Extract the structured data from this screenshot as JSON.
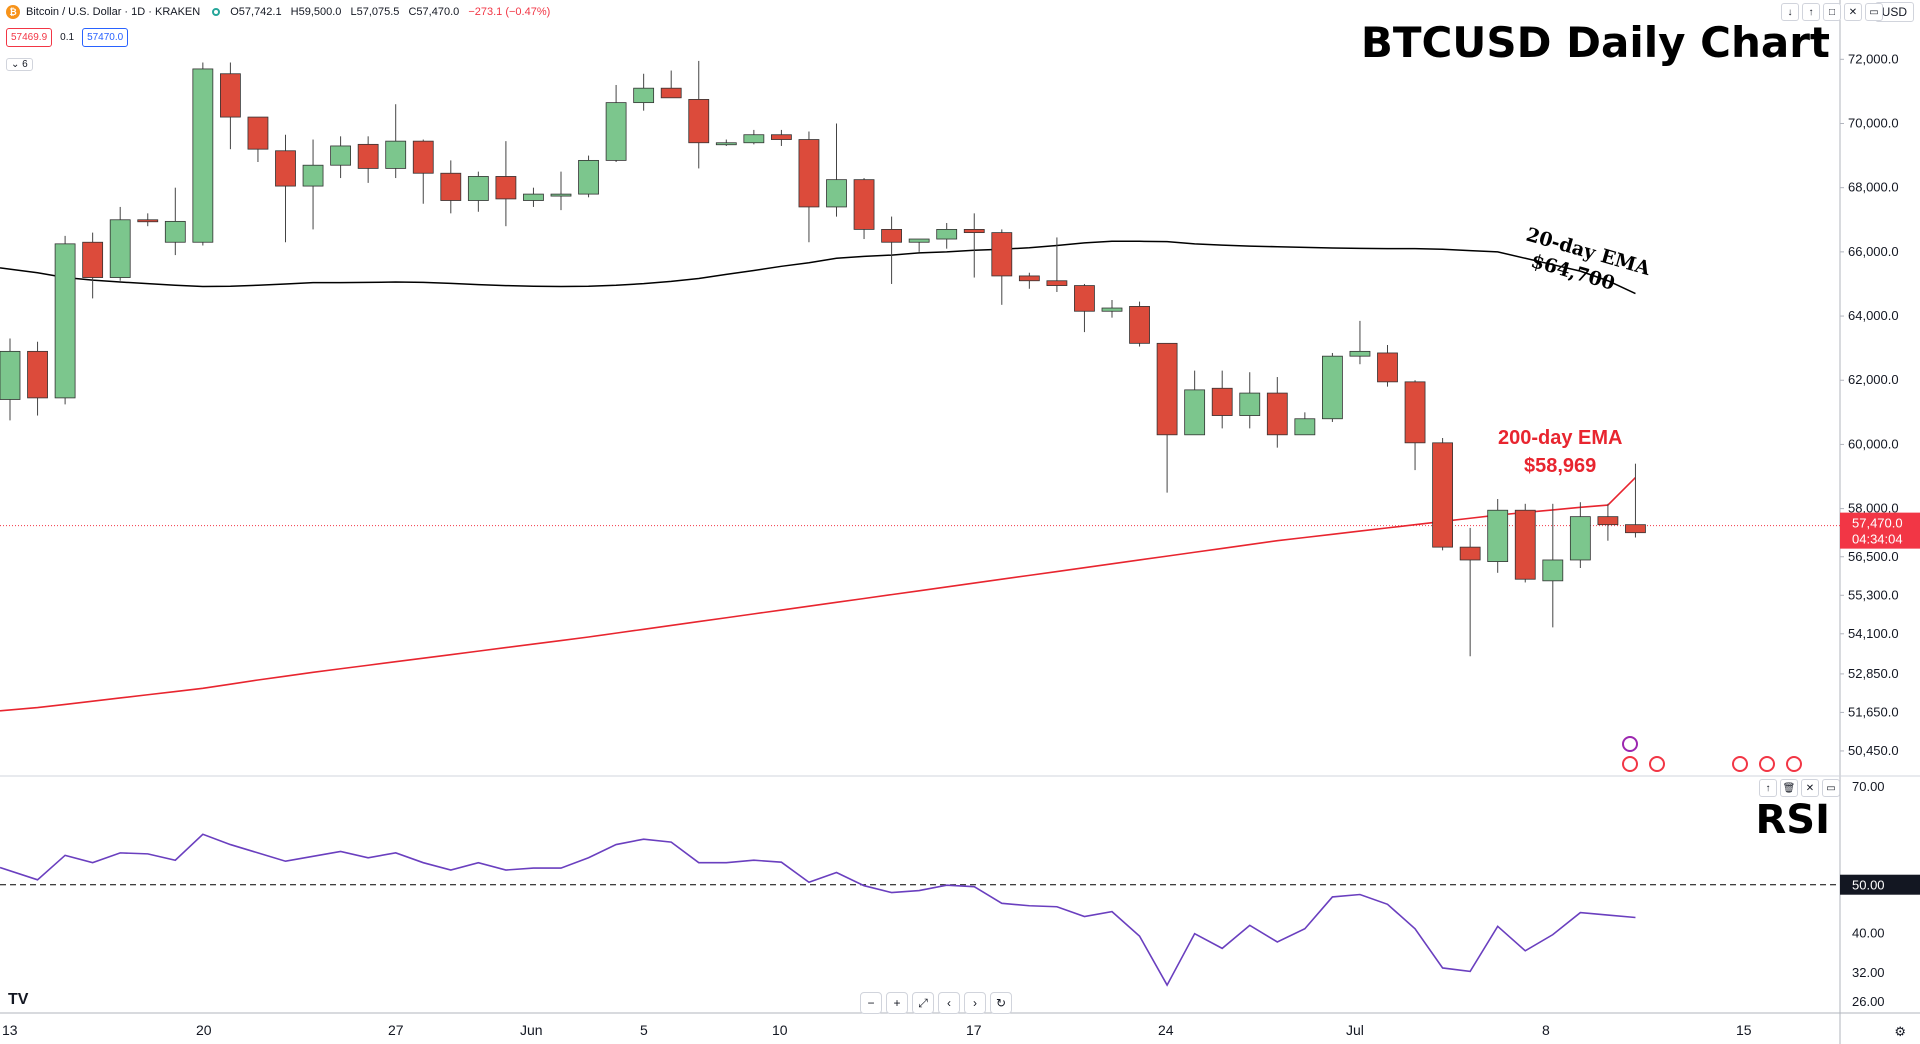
{
  "header": {
    "symbol": "Bitcoin / U.S. Dollar · 1D · KRAKEN",
    "open": "O57,742.1",
    "high": "H59,500.0",
    "low": "L57,075.5",
    "close": "C57,470.0",
    "change": "−273.1 (−0.47%)",
    "sell_price": "57469.9",
    "spread": "0.1",
    "buy_price": "57470.0",
    "indicator_count": "6",
    "currency": "USD"
  },
  "annotations": {
    "chart_title": "BTCUSD Daily Chart",
    "rsi_title": "RSI",
    "ema20_label": "20-day EMA",
    "ema20_value": "$64,700",
    "ema200_label": "200-day EMA",
    "ema200_value": "$58,969"
  },
  "price_badge": {
    "price": "57,470.0",
    "countdown": "04:34:04"
  },
  "rsi_badge": "50.00",
  "controls": {
    "pane_buttons": [
      "↓",
      "↑",
      "□",
      "✕",
      "▭"
    ],
    "rsi_buttons": [
      "↑",
      "🗑",
      "✕",
      "▭"
    ],
    "zoom_buttons": [
      "−",
      "+",
      "⤢",
      "‹",
      "›",
      "↻"
    ],
    "logo": "TV",
    "gear": "⚙"
  },
  "colors": {
    "up": "#7cc68d",
    "down": "#dc4b3b",
    "ema20": "#000000",
    "ema200": "#e8252f",
    "rsi": "#6a3fbf",
    "ema200_text": "#e8252f"
  },
  "chart_data": {
    "type": "candlestick",
    "x_tick_labels": [
      "13",
      "20",
      "27",
      "Jun",
      "5",
      "10",
      "17",
      "24",
      "Jul",
      "8",
      "15"
    ],
    "price_axis_ticks": [
      "72,000.0",
      "70,000.0",
      "68,000.0",
      "66,000.0",
      "64,000.0",
      "62,000.0",
      "60,000.0",
      "58,000.0",
      "56,500.0",
      "55,300.0",
      "54,100.0",
      "52,850.0",
      "51,650.0",
      "50,450.0"
    ],
    "rsi_axis_ticks": [
      "70.00",
      "40.00",
      "32.00",
      "26.00"
    ],
    "candles": [
      {
        "o": 61400,
        "h": 63300,
        "l": 60750,
        "c": 62900
      },
      {
        "o": 62900,
        "h": 63200,
        "l": 60900,
        "c": 61450
      },
      {
        "o": 61450,
        "h": 66500,
        "l": 61250,
        "c": 66250
      },
      {
        "o": 66300,
        "h": 66600,
        "l": 64550,
        "c": 65200
      },
      {
        "o": 65200,
        "h": 67400,
        "l": 65100,
        "c": 67000
      },
      {
        "o": 67000,
        "h": 67200,
        "l": 66800,
        "c": 66950
      },
      {
        "o": 66300,
        "h": 68000,
        "l": 65900,
        "c": 66950
      },
      {
        "o": 66300,
        "h": 71900,
        "l": 66200,
        "c": 71700
      },
      {
        "o": 71550,
        "h": 71900,
        "l": 69200,
        "c": 70200
      },
      {
        "o": 70200,
        "h": 70200,
        "l": 68800,
        "c": 69200
      },
      {
        "o": 69150,
        "h": 69650,
        "l": 66300,
        "c": 68050
      },
      {
        "o": 68050,
        "h": 69500,
        "l": 66700,
        "c": 68700
      },
      {
        "o": 68700,
        "h": 69600,
        "l": 68300,
        "c": 69300
      },
      {
        "o": 69350,
        "h": 69600,
        "l": 68150,
        "c": 68600
      },
      {
        "o": 68600,
        "h": 70600,
        "l": 68300,
        "c": 69450
      },
      {
        "o": 69450,
        "h": 69500,
        "l": 67500,
        "c": 68450
      },
      {
        "o": 68450,
        "h": 68850,
        "l": 67200,
        "c": 67600
      },
      {
        "o": 67600,
        "h": 68500,
        "l": 67250,
        "c": 68350
      },
      {
        "o": 68350,
        "h": 69450,
        "l": 66800,
        "c": 67650
      },
      {
        "o": 67600,
        "h": 68000,
        "l": 67400,
        "c": 67800
      },
      {
        "o": 67800,
        "h": 68500,
        "l": 67300,
        "c": 67800
      },
      {
        "o": 67800,
        "h": 69000,
        "l": 67700,
        "c": 68850
      },
      {
        "o": 68850,
        "h": 71200,
        "l": 68800,
        "c": 70650
      },
      {
        "o": 70650,
        "h": 71550,
        "l": 70400,
        "c": 71100
      },
      {
        "o": 71100,
        "h": 71650,
        "l": 70800,
        "c": 70800
      },
      {
        "o": 70750,
        "h": 71950,
        "l": 68600,
        "c": 69400
      },
      {
        "o": 69400,
        "h": 69500,
        "l": 69300,
        "c": 69400
      },
      {
        "o": 69400,
        "h": 69800,
        "l": 69350,
        "c": 69650
      },
      {
        "o": 69650,
        "h": 69800,
        "l": 69300,
        "c": 69500
      },
      {
        "o": 69500,
        "h": 69750,
        "l": 66300,
        "c": 67400
      },
      {
        "o": 67400,
        "h": 70000,
        "l": 67100,
        "c": 68250
      },
      {
        "o": 68250,
        "h": 68300,
        "l": 66400,
        "c": 66700
      },
      {
        "o": 66700,
        "h": 67100,
        "l": 65000,
        "c": 66300
      },
      {
        "o": 66300,
        "h": 66400,
        "l": 66000,
        "c": 66400
      },
      {
        "o": 66400,
        "h": 66900,
        "l": 66100,
        "c": 66700
      },
      {
        "o": 66700,
        "h": 67200,
        "l": 65200,
        "c": 66600
      },
      {
        "o": 66600,
        "h": 66700,
        "l": 64350,
        "c": 65250
      },
      {
        "o": 65250,
        "h": 65350,
        "l": 64850,
        "c": 65100
      },
      {
        "o": 65100,
        "h": 66450,
        "l": 64750,
        "c": 64950
      },
      {
        "o": 64950,
        "h": 65000,
        "l": 63500,
        "c": 64150
      },
      {
        "o": 64150,
        "h": 64500,
        "l": 63950,
        "c": 64250
      },
      {
        "o": 64300,
        "h": 64450,
        "l": 63050,
        "c": 63150
      },
      {
        "o": 63150,
        "h": 63150,
        "l": 58500,
        "c": 60300
      },
      {
        "o": 60300,
        "h": 62300,
        "l": 60300,
        "c": 61700
      },
      {
        "o": 61750,
        "h": 62300,
        "l": 60500,
        "c": 60900
      },
      {
        "o": 60900,
        "h": 62250,
        "l": 60500,
        "c": 61600
      },
      {
        "o": 61600,
        "h": 62100,
        "l": 59900,
        "c": 60300
      },
      {
        "o": 60300,
        "h": 61000,
        "l": 60300,
        "c": 60800
      },
      {
        "o": 60800,
        "h": 62850,
        "l": 60700,
        "c": 62750
      },
      {
        "o": 62750,
        "h": 63850,
        "l": 62500,
        "c": 62900
      },
      {
        "o": 62850,
        "h": 63100,
        "l": 61800,
        "c": 61950
      },
      {
        "o": 61950,
        "h": 62000,
        "l": 59200,
        "c": 60050
      },
      {
        "o": 60050,
        "h": 60200,
        "l": 56700,
        "c": 56800
      },
      {
        "o": 56800,
        "h": 57400,
        "l": 53400,
        "c": 56400
      },
      {
        "o": 56350,
        "h": 58300,
        "l": 56000,
        "c": 57950
      },
      {
        "o": 57950,
        "h": 58150,
        "l": 55700,
        "c": 55800
      },
      {
        "o": 55750,
        "h": 58150,
        "l": 54300,
        "c": 56400
      },
      {
        "o": 56400,
        "h": 58200,
        "l": 56150,
        "c": 57750
      },
      {
        "o": 57750,
        "h": 58150,
        "l": 57000,
        "c": 57500
      },
      {
        "o": 57500,
        "h": 59400,
        "l": 57100,
        "c": 57250
      }
    ],
    "ema20": [
      65500,
      65350,
      65200,
      65120,
      65060,
      65010,
      64960,
      64920,
      64930,
      64960,
      65000,
      65040,
      65040,
      65050,
      65060,
      65050,
      65020,
      64980,
      64950,
      64930,
      64920,
      64930,
      64960,
      65010,
      65080,
      65170,
      65300,
      65420,
      65550,
      65660,
      65800,
      65860,
      65900,
      65970,
      66000,
      66050,
      66080,
      66130,
      66200,
      66280,
      66330,
      66330,
      66320,
      66250,
      66210,
      66180,
      66160,
      66140,
      66120,
      66110,
      66100,
      66100,
      66080,
      66040,
      66000,
      65800,
      65600,
      65400,
      65100,
      64700
    ],
    "ema200": [
      51700,
      51800,
      51900,
      52000,
      52100,
      52200,
      52300,
      52400,
      52530,
      52660,
      52780,
      52900,
      53010,
      53120,
      53230,
      53340,
      53450,
      53560,
      53670,
      53780,
      53890,
      54000,
      54120,
      54240,
      54360,
      54480,
      54600,
      54720,
      54840,
      54960,
      55080,
      55200,
      55320,
      55440,
      55560,
      55680,
      55800,
      55920,
      56040,
      56160,
      56280,
      56400,
      56520,
      56640,
      56760,
      56880,
      57000,
      57100,
      57200,
      57300,
      57400,
      57500,
      57600,
      57700,
      57800,
      57880,
      57960,
      58040,
      58110,
      58969
    ],
    "rsi": [
      53.5,
      51,
      56,
      54.5,
      56.5,
      56.3,
      55,
      60.3,
      58.2,
      56.5,
      54.8,
      55.8,
      56.8,
      55.5,
      56.5,
      54.5,
      53,
      54.5,
      53,
      53.4,
      53.4,
      55.5,
      58.2,
      59.3,
      58.7,
      54.5,
      54.5,
      55,
      54.6,
      50.5,
      52.5,
      49.8,
      48.4,
      48.8,
      49.9,
      49.6,
      46.2,
      45.7,
      45.5,
      43.5,
      44.5,
      39.5,
      29.5,
      40,
      37,
      41.7,
      38.3,
      41,
      47.5,
      48,
      46,
      41,
      33,
      32.3,
      41.5,
      36.5,
      39.8,
      44.3,
      43.8,
      43.3
    ],
    "price_range": [
      49700,
      73100
    ],
    "rsi_range": [
      24,
      72
    ],
    "rsi_midline": 50,
    "current_price": 57470
  }
}
